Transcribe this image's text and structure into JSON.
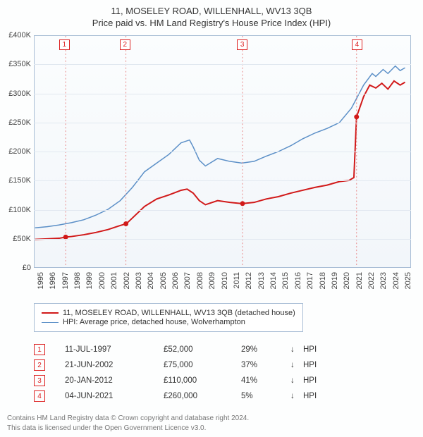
{
  "title_line1": "11, MOSELEY ROAD, WILLENHALL, WV13 3QB",
  "title_line2": "Price paid vs. HM Land Registry's House Price Index (HPI)",
  "chart": {
    "type": "line",
    "background_gradient": [
      "#fbfdfe",
      "#f2f6fa"
    ],
    "border_color": "#a8bdd5",
    "grid_color": "#e1e8f0",
    "x_axis": {
      "min": 1995,
      "max": 2025.8,
      "ticks": [
        1995,
        1996,
        1997,
        1998,
        1999,
        2000,
        2001,
        2002,
        2003,
        2004,
        2005,
        2006,
        2007,
        2008,
        2009,
        2010,
        2011,
        2012,
        2013,
        2014,
        2015,
        2016,
        2017,
        2018,
        2019,
        2020,
        2021,
        2022,
        2023,
        2024,
        2025
      ]
    },
    "y_axis": {
      "min": 0,
      "max": 400000,
      "ticks": [
        0,
        50000,
        100000,
        150000,
        200000,
        250000,
        300000,
        350000,
        400000
      ],
      "tick_labels": [
        "£0",
        "£50K",
        "£100K",
        "£150K",
        "£200K",
        "£250K",
        "£300K",
        "£350K",
        "£400K"
      ]
    },
    "series": [
      {
        "name": "property",
        "label": "11, MOSELEY ROAD, WILLENHALL, WV13 3QB (detached house)",
        "color": "#d11919",
        "line_width": 2,
        "points": [
          [
            1995,
            48000
          ],
          [
            1996,
            49000
          ],
          [
            1997,
            50000
          ],
          [
            1997.5,
            52000
          ],
          [
            1998,
            53000
          ],
          [
            1999,
            56000
          ],
          [
            2000,
            60000
          ],
          [
            2001,
            65000
          ],
          [
            2002,
            72000
          ],
          [
            2002.5,
            75000
          ],
          [
            2003,
            85000
          ],
          [
            2004,
            105000
          ],
          [
            2005,
            118000
          ],
          [
            2006,
            125000
          ],
          [
            2007,
            133000
          ],
          [
            2007.5,
            135000
          ],
          [
            2008,
            128000
          ],
          [
            2008.5,
            115000
          ],
          [
            2009,
            108000
          ],
          [
            2010,
            115000
          ],
          [
            2011,
            112000
          ],
          [
            2012,
            110000
          ],
          [
            2013,
            112000
          ],
          [
            2014,
            118000
          ],
          [
            2015,
            122000
          ],
          [
            2016,
            128000
          ],
          [
            2017,
            133000
          ],
          [
            2018,
            138000
          ],
          [
            2019,
            142000
          ],
          [
            2020,
            148000
          ],
          [
            2020.8,
            150000
          ],
          [
            2021.2,
            155000
          ],
          [
            2021.42,
            260000
          ],
          [
            2022,
            295000
          ],
          [
            2022.5,
            315000
          ],
          [
            2023,
            310000
          ],
          [
            2023.5,
            318000
          ],
          [
            2024,
            308000
          ],
          [
            2024.5,
            322000
          ],
          [
            2025,
            315000
          ],
          [
            2025.4,
            320000
          ]
        ]
      },
      {
        "name": "hpi",
        "label": "HPI: Average price, detached house, Wolverhampton",
        "color": "#5b8fc7",
        "line_width": 1.5,
        "points": [
          [
            1995,
            68000
          ],
          [
            1996,
            70000
          ],
          [
            1997,
            73000
          ],
          [
            1998,
            77000
          ],
          [
            1999,
            82000
          ],
          [
            2000,
            90000
          ],
          [
            2001,
            100000
          ],
          [
            2002,
            115000
          ],
          [
            2003,
            138000
          ],
          [
            2004,
            165000
          ],
          [
            2005,
            180000
          ],
          [
            2006,
            195000
          ],
          [
            2007,
            215000
          ],
          [
            2007.7,
            220000
          ],
          [
            2008,
            208000
          ],
          [
            2008.5,
            185000
          ],
          [
            2009,
            175000
          ],
          [
            2010,
            188000
          ],
          [
            2011,
            183000
          ],
          [
            2012,
            180000
          ],
          [
            2013,
            183000
          ],
          [
            2014,
            192000
          ],
          [
            2015,
            200000
          ],
          [
            2016,
            210000
          ],
          [
            2017,
            222000
          ],
          [
            2018,
            232000
          ],
          [
            2019,
            240000
          ],
          [
            2020,
            250000
          ],
          [
            2021,
            275000
          ],
          [
            2022,
            315000
          ],
          [
            2022.7,
            335000
          ],
          [
            2023,
            330000
          ],
          [
            2023.6,
            342000
          ],
          [
            2024,
            335000
          ],
          [
            2024.6,
            348000
          ],
          [
            2025,
            340000
          ],
          [
            2025.4,
            345000
          ]
        ]
      }
    ],
    "sale_markers": [
      {
        "num": "1",
        "year": 1997.52,
        "price": 52000
      },
      {
        "num": "2",
        "year": 2002.47,
        "price": 75000
      },
      {
        "num": "3",
        "year": 2012.05,
        "price": 110000
      },
      {
        "num": "4",
        "year": 2021.42,
        "price": 260000
      }
    ],
    "marker_dot_color": "#d11919",
    "marker_line_color": "#e88888",
    "marker_box_border": "#d22222"
  },
  "legend": {
    "border_color": "#a8bdd5"
  },
  "sales_table": {
    "rows": [
      {
        "num": "1",
        "date": "11-JUL-1997",
        "price": "£52,000",
        "pct": "29%",
        "arrow": "↓",
        "label": "HPI"
      },
      {
        "num": "2",
        "date": "21-JUN-2002",
        "price": "£75,000",
        "pct": "37%",
        "arrow": "↓",
        "label": "HPI"
      },
      {
        "num": "3",
        "date": "20-JAN-2012",
        "price": "£110,000",
        "pct": "41%",
        "arrow": "↓",
        "label": "HPI"
      },
      {
        "num": "4",
        "date": "04-JUN-2021",
        "price": "£260,000",
        "pct": "5%",
        "arrow": "↓",
        "label": "HPI"
      }
    ]
  },
  "footer_line1": "Contains HM Land Registry data © Crown copyright and database right 2024.",
  "footer_line2": "This data is licensed under the Open Government Licence v3.0."
}
